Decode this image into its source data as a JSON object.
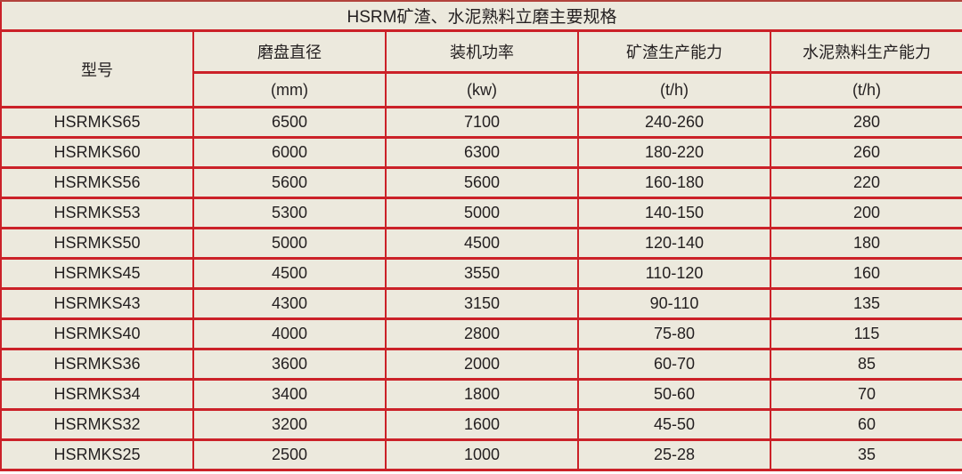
{
  "title": "HSRM矿渣、水泥熟料立磨主要规格",
  "table": {
    "columns": [
      {
        "label": "型号",
        "unit": ""
      },
      {
        "label": "磨盘直径",
        "unit": "(mm)"
      },
      {
        "label": "装机功率",
        "unit": "(kw)"
      },
      {
        "label": "矿渣生产能力",
        "unit": "(t/h)"
      },
      {
        "label": "水泥熟料生产能力",
        "unit": "(t/h)"
      }
    ],
    "rows": [
      [
        "HSRMKS65",
        "6500",
        "7100",
        "240-260",
        "280"
      ],
      [
        "HSRMKS60",
        "6000",
        "6300",
        "180-220",
        "260"
      ],
      [
        "HSRMKS56",
        "5600",
        "5600",
        "160-180",
        "220"
      ],
      [
        "HSRMKS53",
        "5300",
        "5000",
        "140-150",
        "200"
      ],
      [
        "HSRMKS50",
        "5000",
        "4500",
        "120-140",
        "180"
      ],
      [
        "HSRMKS45",
        "4500",
        "3550",
        "110-120",
        "160"
      ],
      [
        "HSRMKS43",
        "4300",
        "3150",
        "90-110",
        "135"
      ],
      [
        "HSRMKS40",
        "4000",
        "2800",
        "75-80",
        "115"
      ],
      [
        "HSRMKS36",
        "3600",
        "2000",
        "60-70",
        "85"
      ],
      [
        "HSRMKS34",
        "3400",
        "1800",
        "50-60",
        "70"
      ],
      [
        "HSRMKS32",
        "3200",
        "1600",
        "45-50",
        "60"
      ],
      [
        "HSRMKS25",
        "2500",
        "1000",
        "25-28",
        "35"
      ]
    ]
  },
  "colors": {
    "border_red": "#cb2128",
    "top_edge_maroon": "#b2433c",
    "background_beige": "#ece9dd",
    "text_dark": "#231f20"
  }
}
